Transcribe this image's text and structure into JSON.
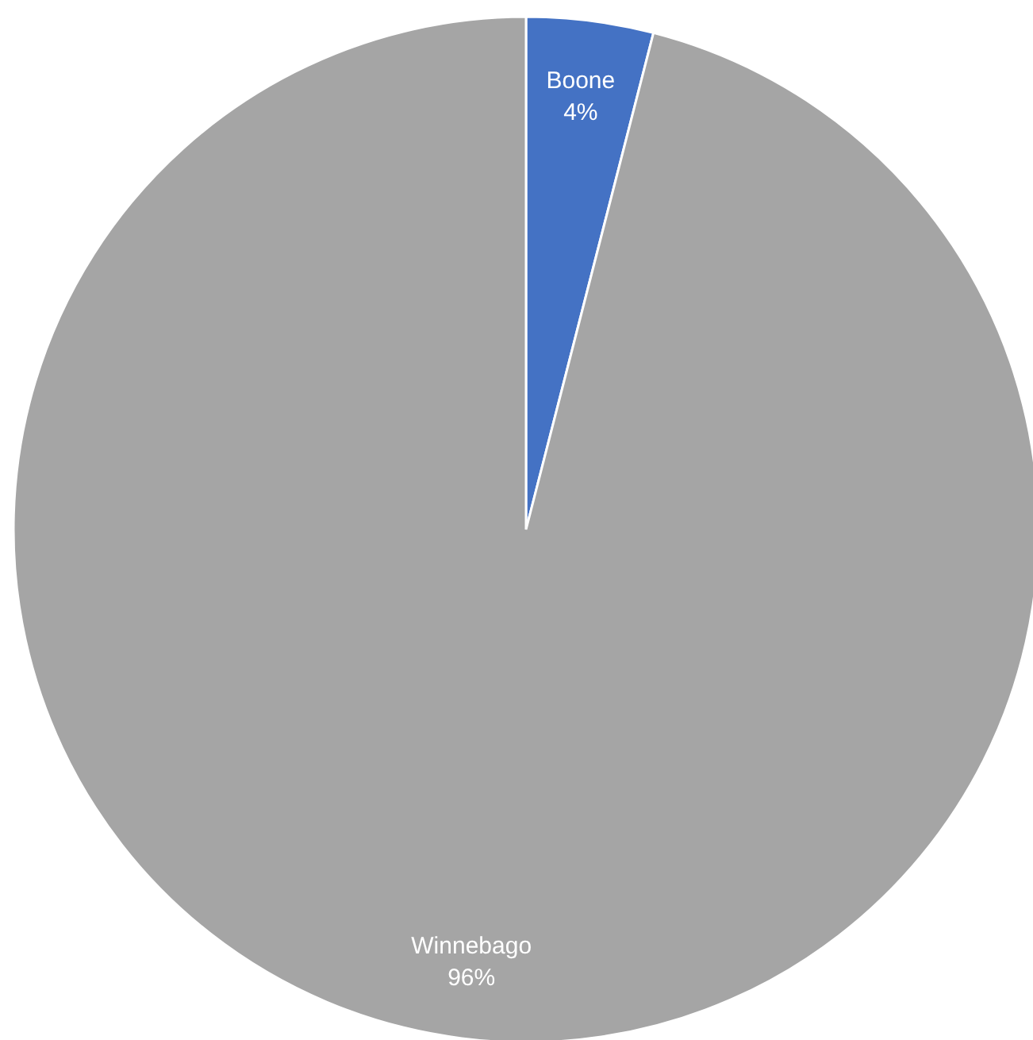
{
  "chart_data": {
    "type": "pie",
    "categories": [
      "Boone",
      "Winnebago"
    ],
    "values": [
      4,
      96
    ],
    "value_labels": [
      "4%",
      "96%"
    ],
    "colors": [
      "#4472c4",
      "#a5a5a5"
    ]
  }
}
